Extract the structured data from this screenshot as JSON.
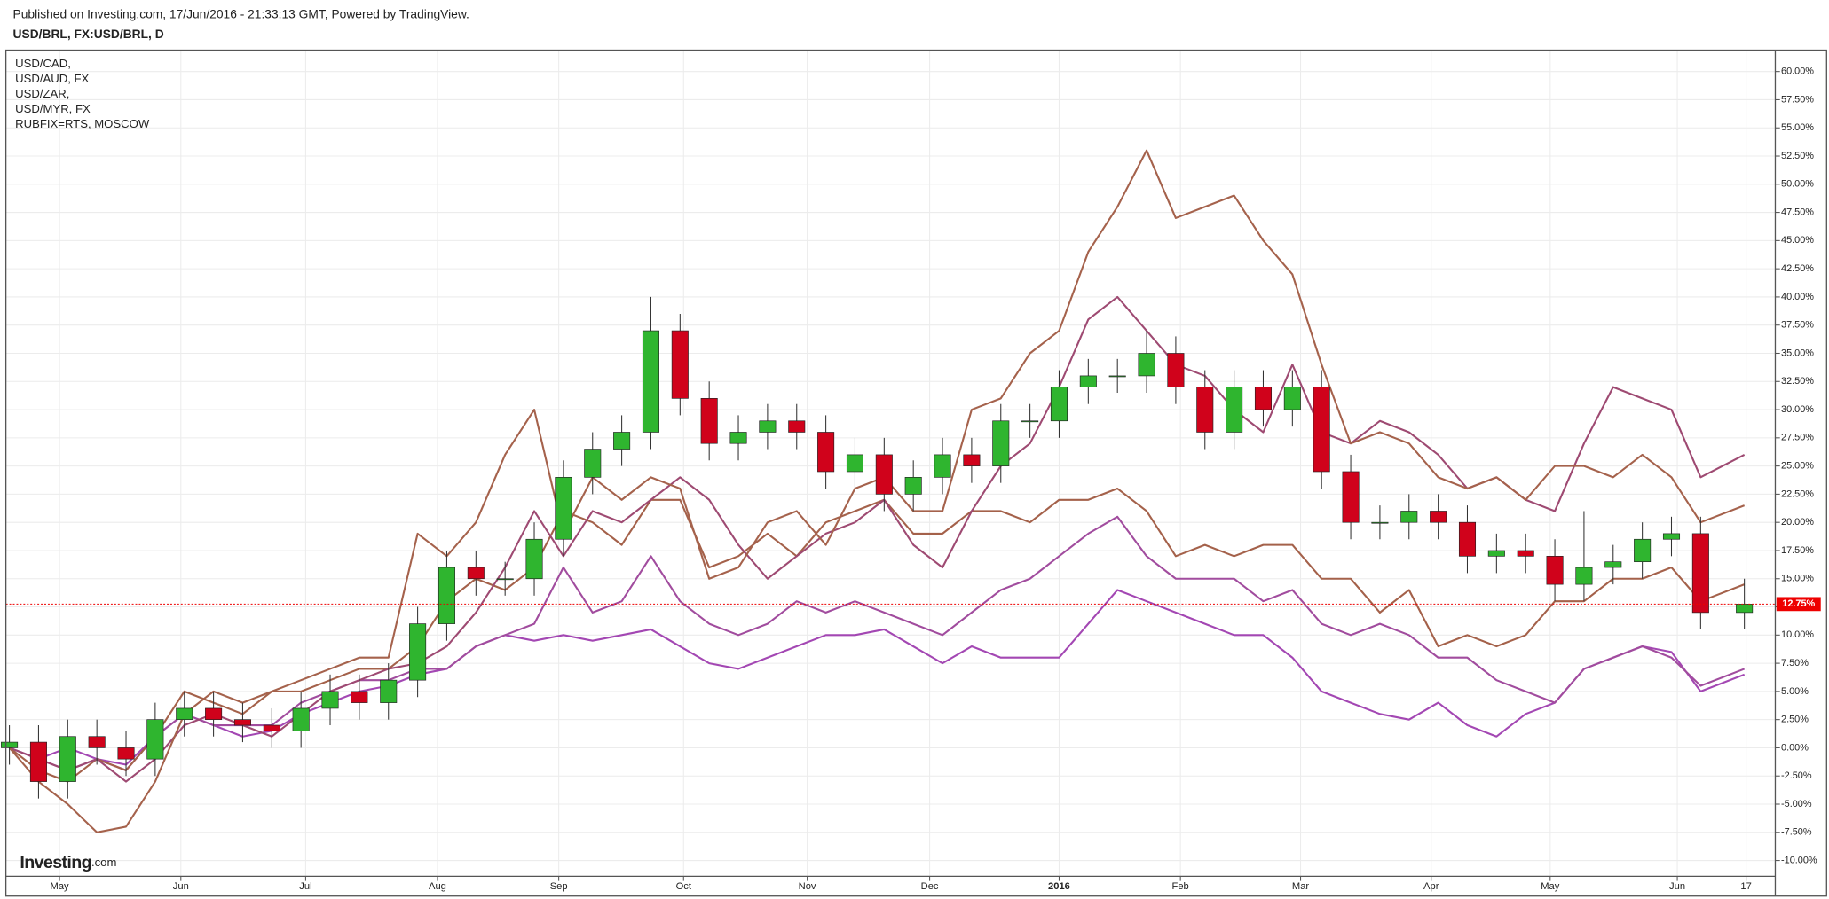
{
  "header": {
    "published": "Published on Investing.com, 17/Jun/2016 - 21:33:13 GMT, Powered by TradingView."
  },
  "chart_data": {
    "type": "candlestick",
    "title": "USD/BRL, FX:USD/BRL, D",
    "x": [
      0,
      1,
      2,
      3,
      4,
      5,
      6,
      7,
      8,
      9,
      10,
      11,
      12,
      13,
      14,
      15,
      16,
      17,
      18,
      19,
      20,
      21,
      22,
      23,
      24,
      25,
      26,
      27,
      28,
      29,
      30,
      31,
      32,
      33,
      34,
      35,
      36,
      37,
      38,
      39,
      40,
      41,
      42,
      43,
      44,
      45,
      46,
      47,
      48,
      49,
      50,
      51,
      52,
      53,
      54,
      55,
      56,
      57,
      58,
      59.5
    ],
    "open": [
      0,
      0.5,
      -3,
      1,
      0,
      -1,
      2.5,
      3.5,
      2.5,
      2,
      1.5,
      3.5,
      5,
      4,
      6,
      11,
      16,
      15,
      15,
      18.5,
      24,
      26.5,
      28,
      37,
      31,
      27,
      28,
      29,
      28,
      24.5,
      26,
      22.5,
      24,
      26,
      25,
      29,
      29,
      32,
      33,
      33,
      35,
      32,
      28,
      32,
      30,
      32,
      24.5,
      20,
      20,
      21,
      20,
      17,
      17.5,
      17,
      14.5,
      16,
      16.5,
      18.5,
      19,
      12
    ],
    "high": [
      2,
      2,
      2.5,
      2.5,
      1.5,
      4,
      5,
      5,
      4,
      3.5,
      5,
      6.5,
      6.5,
      7.5,
      12.5,
      17.5,
      17.5,
      16.5,
      20,
      25.5,
      28,
      29.5,
      40,
      38.5,
      32.5,
      29.5,
      30.5,
      30.5,
      29.5,
      27.5,
      27.5,
      25.5,
      27.5,
      27.5,
      30.5,
      30.5,
      33.5,
      34.5,
      34.5,
      37,
      36.5,
      33.5,
      33.5,
      33.5,
      33.5,
      33.5,
      26,
      21.5,
      22.5,
      22.5,
      21.5,
      19,
      19,
      18.5,
      21,
      18,
      20,
      20.5,
      20.5,
      15
    ],
    "low": [
      -1.5,
      -4.5,
      -4.5,
      -1.5,
      -2.5,
      -2.5,
      1,
      1,
      0.5,
      0,
      0,
      2,
      2.5,
      2.5,
      4.5,
      9.5,
      13.5,
      13.5,
      13.5,
      17,
      22.5,
      25,
      26.5,
      29.5,
      25.5,
      25.5,
      26.5,
      26.5,
      23,
      23,
      21,
      21,
      22.5,
      23.5,
      23.5,
      27.5,
      27.5,
      30.5,
      31.5,
      31.5,
      30.5,
      26.5,
      26.5,
      28.5,
      28.5,
      23,
      18.5,
      18.5,
      18.5,
      18.5,
      15.5,
      15.5,
      15.5,
      13,
      13,
      14.5,
      15,
      17,
      10.5,
      10.5
    ],
    "close": [
      0.5,
      -3,
      1,
      0,
      -1,
      2.5,
      3.5,
      2.5,
      2,
      1.5,
      3.5,
      5,
      4,
      6,
      11,
      16,
      15,
      15,
      18.5,
      24,
      26.5,
      28,
      37,
      31,
      27,
      28,
      29,
      28,
      24.5,
      26,
      22.5,
      24,
      26,
      25,
      29,
      29,
      32,
      33,
      33,
      35,
      32,
      28,
      32,
      30,
      32,
      24.5,
      20,
      20,
      21,
      20,
      17,
      17.5,
      17,
      14.5,
      16,
      16.5,
      18.5,
      19,
      12,
      12.75
    ],
    "up_color": "#2fb52f",
    "down_color": "#d0021b",
    "series": [
      {
        "name": "USD/CAD,",
        "color": "#a347b3",
        "values": [
          0,
          -1,
          0,
          -1,
          -1.5,
          1,
          3,
          2,
          1,
          1.5,
          3,
          4,
          5,
          5.5,
          6.5,
          7,
          9,
          10,
          9.5,
          10,
          9.5,
          10,
          10.5,
          9,
          7.5,
          7,
          8,
          9,
          10,
          10,
          10.5,
          9,
          7.5,
          9,
          8,
          8,
          8,
          11,
          14,
          13,
          12,
          11,
          10,
          10,
          8,
          5,
          4,
          3,
          2.5,
          4,
          2,
          1,
          3,
          4,
          7,
          8,
          9,
          8.5,
          5,
          6.5
        ]
      },
      {
        "name": "USD/AUD, FX",
        "color": "#a14c9e",
        "values": [
          0,
          -1,
          -2,
          -1,
          -2,
          1,
          3,
          2,
          2,
          2,
          4,
          5,
          6,
          6,
          7,
          7,
          9,
          10,
          11,
          16,
          12,
          13,
          17,
          13,
          11,
          10,
          11,
          13,
          12,
          13,
          12,
          11,
          10,
          12,
          14,
          15,
          17,
          19,
          20.5,
          17,
          15,
          15,
          15,
          13,
          14,
          11,
          10,
          11,
          10,
          8,
          8,
          6,
          5,
          4,
          7,
          8,
          9,
          8,
          5.5,
          7
        ]
      },
      {
        "name": "USD/ZAR,",
        "color": "#a4614a",
        "values": [
          0,
          -2,
          -3,
          -1,
          -2,
          1,
          5,
          4,
          3,
          5,
          5,
          6,
          7,
          7,
          9,
          13,
          15,
          14,
          16,
          21,
          20,
          18,
          22,
          22,
          16,
          17,
          19,
          17,
          20,
          21,
          22,
          19,
          19,
          21,
          21,
          20,
          22,
          22,
          23,
          21,
          17,
          18,
          17,
          18,
          18,
          15,
          15,
          12,
          14,
          9,
          10,
          9,
          10,
          13,
          13,
          15,
          15,
          16,
          13,
          14.5
        ]
      },
      {
        "name": "USD/MYR, FX",
        "color": "#9e4a72",
        "values": [
          0,
          -1,
          -2,
          -1,
          -3,
          -1,
          2,
          3,
          2,
          1,
          3,
          5,
          6,
          7,
          7.5,
          9,
          12,
          16,
          21,
          17,
          21,
          20,
          22,
          24,
          22,
          18,
          15,
          17,
          19,
          20,
          22,
          18,
          16,
          21,
          25,
          27,
          32,
          38,
          40,
          37,
          34,
          33,
          30,
          28,
          34,
          28,
          27,
          29,
          28,
          26,
          23,
          24,
          22,
          21,
          27,
          32,
          31,
          30,
          24,
          26
        ]
      },
      {
        "name": "RUBFIX=RTS, MOSCOW",
        "color": "#a5624c",
        "values": [
          0,
          -3,
          -5,
          -7.5,
          -7,
          -3,
          3,
          5,
          4,
          5,
          6,
          7,
          8,
          8,
          19,
          17,
          20,
          26,
          30,
          19,
          24,
          22,
          24,
          23,
          15,
          16,
          20,
          21,
          18,
          23,
          24,
          21,
          21,
          30,
          31,
          35,
          37,
          44,
          48,
          53,
          47,
          48,
          49,
          45,
          42,
          34,
          27,
          28,
          27,
          24,
          23,
          24,
          22,
          25,
          25,
          24,
          26,
          24,
          20,
          21.5
        ]
      }
    ],
    "last_value": {
      "value": 12.75,
      "label": "12.75%"
    },
    "ylim": [
      -11.4,
      61.9
    ],
    "yticks": [
      {
        "value": -10,
        "label": "-10.00%"
      },
      {
        "value": -7.5,
        "label": "-7.50%"
      },
      {
        "value": -5,
        "label": "-5.00%"
      },
      {
        "value": -2.5,
        "label": "-2.50%"
      },
      {
        "value": 0,
        "label": "0.00%"
      },
      {
        "value": 2.5,
        "label": "2.50%"
      },
      {
        "value": 5,
        "label": "5.00%"
      },
      {
        "value": 7.5,
        "label": "7.50%"
      },
      {
        "value": 10,
        "label": "10.00%"
      },
      {
        "value": 12.5,
        "label": "12.50%"
      },
      {
        "value": 15,
        "label": "15.00%"
      },
      {
        "value": 17.5,
        "label": "17.50%"
      },
      {
        "value": 20,
        "label": "20.00%"
      },
      {
        "value": 22.5,
        "label": "22.50%"
      },
      {
        "value": 25,
        "label": "25.00%"
      },
      {
        "value": 27.5,
        "label": "27.50%"
      },
      {
        "value": 30,
        "label": "30.00%"
      },
      {
        "value": 32.5,
        "label": "32.50%"
      },
      {
        "value": 35,
        "label": "35.00%"
      },
      {
        "value": 37.5,
        "label": "37.50%"
      },
      {
        "value": 40,
        "label": "40.00%"
      },
      {
        "value": 42.5,
        "label": "42.50%"
      },
      {
        "value": 45,
        "label": "45.00%"
      },
      {
        "value": 47.5,
        "label": "47.50%"
      },
      {
        "value": 50,
        "label": "50.00%"
      },
      {
        "value": 52.5,
        "label": "52.50%"
      },
      {
        "value": 55,
        "label": "55.00%"
      },
      {
        "value": 57.5,
        "label": "57.50%"
      },
      {
        "value": 60,
        "label": "60.00%"
      }
    ],
    "xlim": [
      -0.12,
      60.56
    ],
    "xticks": [
      {
        "value": 1.72,
        "label": "May"
      },
      {
        "value": 5.88,
        "label": "Jun"
      },
      {
        "value": 10.16,
        "label": "Jul"
      },
      {
        "value": 14.68,
        "label": "Aug"
      },
      {
        "value": 18.84,
        "label": "Sep"
      },
      {
        "value": 23.12,
        "label": "Oct"
      },
      {
        "value": 27.36,
        "label": "Nov"
      },
      {
        "value": 31.56,
        "label": "Dec"
      },
      {
        "value": 36,
        "label": "2016"
      },
      {
        "value": 40.16,
        "label": "Feb"
      },
      {
        "value": 44.28,
        "label": "Mar"
      },
      {
        "value": 48.76,
        "label": "Apr"
      },
      {
        "value": 52.84,
        "label": "May"
      },
      {
        "value": 57.2,
        "label": "Jun"
      },
      {
        "value": 59.56,
        "label": "17"
      }
    ],
    "grid": true
  },
  "logo": {
    "brand": "Investing",
    "suffix": ".com"
  }
}
